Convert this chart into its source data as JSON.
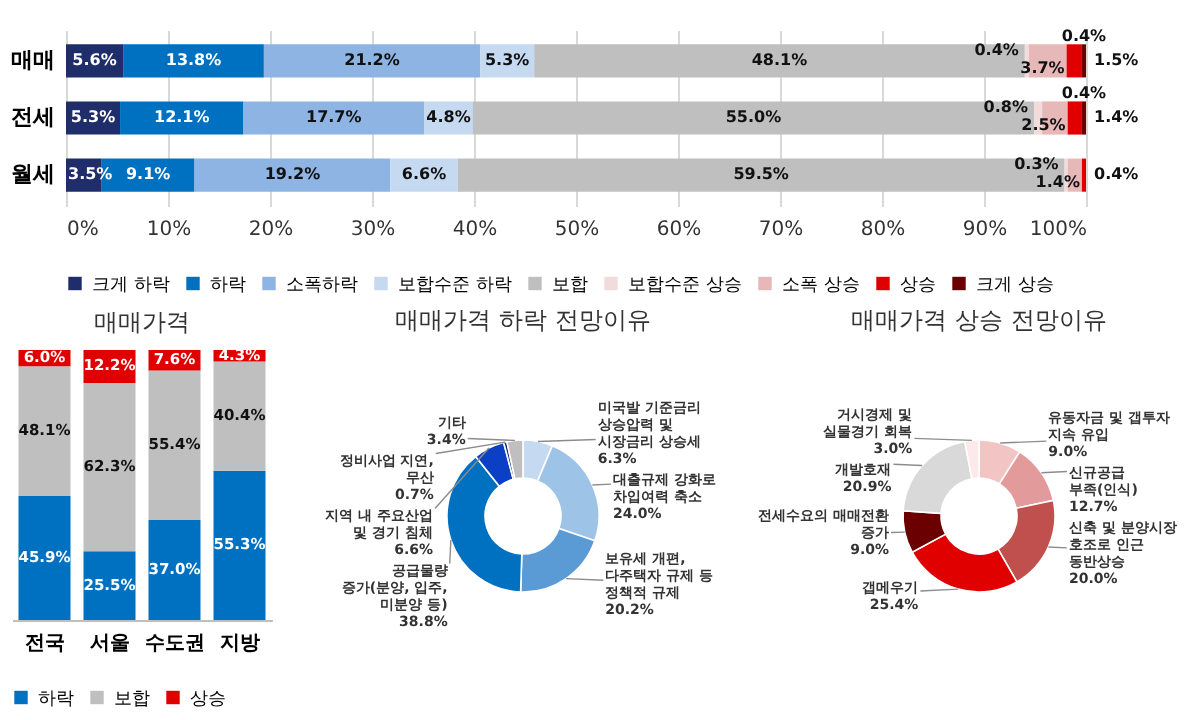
{
  "chart_data": [
    {
      "type": "bar",
      "orientation": "horizontal",
      "stacked": true,
      "categories": [
        "매매",
        "전세",
        "월세"
      ],
      "series": [
        {
          "name": "크게 하락",
          "color": "#1f2d6b",
          "values": [
            5.6,
            5.3,
            3.5
          ],
          "value_labels": [
            "5.6%",
            "5.3%",
            "3.5%"
          ]
        },
        {
          "name": "하락",
          "color": "#0070c0",
          "values": [
            13.8,
            12.1,
            9.1
          ],
          "value_labels": [
            "13.8%",
            "12.1%",
            "9.1%"
          ]
        },
        {
          "name": "소폭하락",
          "color": "#8db4e2",
          "values": [
            21.2,
            17.7,
            19.2
          ],
          "value_labels": [
            "21.2%",
            "17.7%",
            "19.2%"
          ]
        },
        {
          "name": "보합수준 하락",
          "color": "#c5d9f1",
          "values": [
            5.3,
            4.8,
            6.6
          ],
          "value_labels": [
            "5.3%",
            "4.8%",
            "6.6%"
          ]
        },
        {
          "name": "보합",
          "color": "#bfbfbf",
          "values": [
            48.1,
            55.0,
            59.5
          ],
          "value_labels": [
            "48.1%",
            "55.0%",
            "59.5%"
          ]
        },
        {
          "name": "보합수준 상승",
          "color": "#f2dcdb",
          "values": [
            0.4,
            0.8,
            0.3
          ],
          "value_labels": [
            "0.4%",
            "0.8%",
            "0.3%"
          ]
        },
        {
          "name": "소폭 상승",
          "color": "#e6b8b7",
          "values": [
            3.7,
            2.5,
            1.4
          ],
          "value_labels": [
            "3.7%",
            "2.5%",
            "1.4%"
          ]
        },
        {
          "name": "상승",
          "color": "#e00000",
          "values": [
            1.5,
            1.4,
            0.4
          ],
          "value_labels": [
            "1.5%",
            "1.4%",
            "0.4%"
          ]
        },
        {
          "name": "크게 상승",
          "color": "#6b0000",
          "values": [
            0.4,
            0.4,
            null
          ],
          "value_labels": [
            "0.4%",
            "0.4%",
            null
          ]
        }
      ],
      "xlim": [
        0,
        100
      ],
      "xticks": [
        {
          "value": 0,
          "label": "0%"
        },
        {
          "value": 10,
          "label": "10%"
        },
        {
          "value": 20,
          "label": "20%"
        },
        {
          "value": 30,
          "label": "30%"
        },
        {
          "value": 40,
          "label": "40%"
        },
        {
          "value": 50,
          "label": "50%"
        },
        {
          "value": 60,
          "label": "60%"
        },
        {
          "value": 70,
          "label": "70%"
        },
        {
          "value": 80,
          "label": "80%"
        },
        {
          "value": 90,
          "label": "90%"
        },
        {
          "value": 100,
          "label": "100%"
        }
      ],
      "grid": "x",
      "legend": "bottom"
    },
    {
      "type": "bar",
      "stacked": true,
      "title": "매매가격",
      "categories": [
        "전국",
        "서울",
        "수도권",
        "지방"
      ],
      "series": [
        {
          "name": "하락",
          "color": "#0070c0",
          "values": [
            45.9,
            25.5,
            37.0,
            55.3
          ],
          "value_labels": [
            "45.9%",
            "25.5%",
            "37.0%",
            "55.3%"
          ]
        },
        {
          "name": "보합",
          "color": "#bfbfbf",
          "values": [
            48.1,
            62.3,
            55.4,
            40.4
          ],
          "value_labels": [
            "48.1%",
            "62.3%",
            "55.4%",
            "40.4%"
          ]
        },
        {
          "name": "상승",
          "color": "#e00000",
          "values": [
            6.0,
            12.2,
            7.6,
            4.3
          ],
          "value_labels": [
            "6.0%",
            "12.2%",
            "7.6%",
            "4.3%"
          ]
        }
      ],
      "legend": "bottom",
      "tick_labels": "x"
    },
    {
      "type": "donut",
      "title": "매매가격 하락 전망이유",
      "categories": [
        "미국발 기준금리 상승압력 및 시장금리 상승세",
        "대출규제 강화로 차입여력 축소",
        "보유세 개편, 다주택자 규제 등 정책적 규제",
        "공급물량 증가(분양, 입주, 미분양 등)",
        "지역 내 주요산업 및 경기 침체",
        "정비사업 지연, 무산",
        "기타"
      ],
      "values": [
        6.3,
        24.0,
        20.2,
        38.8,
        6.6,
        0.7,
        3.4
      ],
      "colors": [
        "#c5d9f1",
        "#9dc3e6",
        "#5b9bd5",
        "#0070c0",
        "#0b3fc4",
        "#1f2d6b",
        "#bfbfbf"
      ],
      "value_labels": [
        "6.3%",
        "24.0%",
        "20.2%",
        "38.8%",
        "6.6%",
        "0.7%",
        "3.4%"
      ]
    },
    {
      "type": "donut",
      "title": "매매가격 상승 전망이유",
      "categories": [
        "유동자금 및 갭투자 지속 유입",
        "신규공급 부족(인식)",
        "신축 및 분양시장 호조로 인근 동반상승",
        "갭메우기",
        "전세수요의 매매전환 증가",
        "개발호재",
        "거시경제 및 실물경기 회복"
      ],
      "values": [
        9.0,
        12.7,
        20.0,
        25.4,
        9.0,
        20.9,
        3.0
      ],
      "colors": [
        "#f2c4c4",
        "#e39a9a",
        "#c0504d",
        "#e00000",
        "#6b0000",
        "#d9d9d9",
        "#fde9e9"
      ],
      "value_labels": [
        "9.0%",
        "12.7%",
        "20.0%",
        "25.4%",
        "9.0%",
        "20.9%",
        "3.0%"
      ]
    }
  ]
}
